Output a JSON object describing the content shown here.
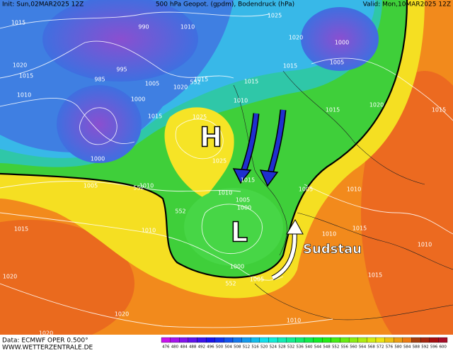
{
  "header": {
    "init": "Init: Sun,02MAR2025 12Z",
    "title": "500 hPa Geopot. (gpdm), Bodendruck (hPa)",
    "valid": "Valid: Mon,10MAR2025 12Z"
  },
  "map": {
    "high_label": "H",
    "low_label": "L",
    "annotation": "Sudstau",
    "isobar_labels": [
      "1015",
      "1025",
      "1010",
      "990",
      "1015",
      "1005",
      "1000",
      "1020",
      "1020",
      "1015",
      "1010",
      "995",
      "985",
      "1000",
      "1005",
      "1015",
      "1020",
      "1015",
      "1010",
      "1025",
      "1025",
      "1015",
      "1015",
      "1020",
      "1015",
      "1000",
      "1005",
      "1010",
      "1010",
      "1015",
      "1005",
      "1000",
      "1010",
      "1015",
      "1020",
      "1020",
      "1005",
      "1010",
      "1015",
      "1015",
      "1010",
      "1010",
      "1000",
      "1005",
      "1010",
      "1020",
      "552",
      "552",
      "552",
      "552"
    ]
  },
  "footer": {
    "source": "Data: ECMWF OPER 0.500°",
    "website": "WWW.WETTERZENTRALE.DE"
  },
  "colorbar": {
    "ticks": [
      476,
      480,
      484,
      488,
      492,
      496,
      500,
      504,
      508,
      512,
      516,
      520,
      524,
      528,
      532,
      536,
      540,
      544,
      548,
      552,
      556,
      560,
      564,
      568,
      572,
      576,
      580,
      584,
      588,
      592,
      596,
      600
    ]
  }
}
